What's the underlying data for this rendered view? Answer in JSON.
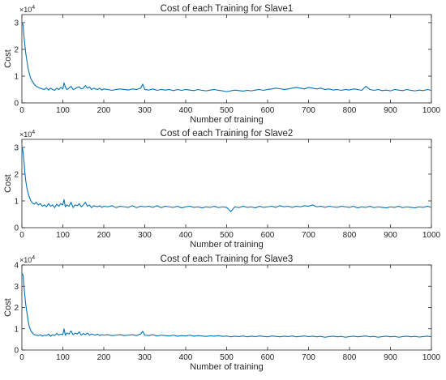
{
  "chart_data": [
    {
      "type": "line",
      "title": "Cost of each Training for Slave1",
      "xlabel": "Number of training",
      "ylabel": "Cost",
      "y_exponent_label": "×10",
      "y_exponent_power": "4",
      "xlim": [
        0,
        1000
      ],
      "ylim": [
        0,
        3.3
      ],
      "xticks": [
        "0",
        "100",
        "200",
        "300",
        "400",
        "500",
        "600",
        "700",
        "800",
        "900",
        "1000"
      ],
      "yticks": [
        "0",
        "1",
        "2",
        "3"
      ],
      "grid": false,
      "series": [
        {
          "color": "#0072BD",
          "x": [
            1,
            3,
            5,
            7,
            9,
            12,
            15,
            18,
            22,
            26,
            30,
            35,
            40,
            45,
            50,
            55,
            60,
            65,
            70,
            75,
            80,
            85,
            90,
            95,
            100,
            103,
            106,
            110,
            115,
            120,
            125,
            130,
            135,
            140,
            145,
            150,
            155,
            160,
            165,
            170,
            175,
            180,
            185,
            190,
            195,
            200,
            210,
            220,
            230,
            240,
            250,
            260,
            270,
            280,
            290,
            295,
            300,
            310,
            320,
            330,
            340,
            350,
            360,
            370,
            380,
            390,
            400,
            410,
            420,
            430,
            440,
            450,
            460,
            470,
            480,
            490,
            500,
            510,
            520,
            530,
            540,
            550,
            560,
            570,
            580,
            590,
            600,
            610,
            620,
            630,
            640,
            650,
            660,
            670,
            680,
            690,
            700,
            710,
            720,
            730,
            740,
            750,
            760,
            770,
            780,
            790,
            800,
            810,
            820,
            830,
            840,
            850,
            860,
            870,
            880,
            890,
            900,
            910,
            920,
            930,
            940,
            950,
            960,
            970,
            980,
            990,
            1000
          ],
          "y": [
            3.0,
            2.9,
            2.5,
            2.2,
            1.9,
            1.6,
            1.3,
            1.1,
            0.9,
            0.8,
            0.7,
            0.62,
            0.58,
            0.55,
            0.52,
            0.5,
            0.56,
            0.48,
            0.55,
            0.5,
            0.47,
            0.55,
            0.5,
            0.58,
            0.52,
            0.75,
            0.6,
            0.5,
            0.55,
            0.62,
            0.5,
            0.53,
            0.58,
            0.6,
            0.52,
            0.55,
            0.65,
            0.55,
            0.6,
            0.5,
            0.55,
            0.52,
            0.5,
            0.55,
            0.48,
            0.52,
            0.5,
            0.47,
            0.5,
            0.52,
            0.5,
            0.48,
            0.52,
            0.5,
            0.55,
            0.7,
            0.5,
            0.48,
            0.52,
            0.47,
            0.5,
            0.48,
            0.5,
            0.46,
            0.5,
            0.47,
            0.5,
            0.48,
            0.46,
            0.5,
            0.47,
            0.45,
            0.48,
            0.5,
            0.47,
            0.45,
            0.42,
            0.45,
            0.48,
            0.46,
            0.44,
            0.47,
            0.45,
            0.48,
            0.5,
            0.47,
            0.5,
            0.52,
            0.55,
            0.53,
            0.5,
            0.52,
            0.55,
            0.58,
            0.55,
            0.52,
            0.58,
            0.55,
            0.52,
            0.55,
            0.5,
            0.52,
            0.48,
            0.5,
            0.47,
            0.5,
            0.48,
            0.52,
            0.5,
            0.47,
            0.62,
            0.5,
            0.47,
            0.5,
            0.46,
            0.48,
            0.45,
            0.5,
            0.48,
            0.46,
            0.5,
            0.47,
            0.45,
            0.48,
            0.46,
            0.5,
            0.47
          ]
        }
      ]
    },
    {
      "type": "line",
      "title": "Cost of each Training for Slave2",
      "xlabel": "Number of training",
      "ylabel": "Cost",
      "y_exponent_label": "×10",
      "y_exponent_power": "4",
      "xlim": [
        0,
        1000
      ],
      "ylim": [
        0,
        3.3
      ],
      "xticks": [
        "0",
        "100",
        "200",
        "300",
        "400",
        "500",
        "600",
        "700",
        "800",
        "900",
        "1000"
      ],
      "yticks": [
        "0",
        "1",
        "2",
        "3"
      ],
      "grid": false,
      "series": [
        {
          "color": "#0072BD",
          "x": [
            1,
            3,
            5,
            7,
            9,
            12,
            15,
            18,
            22,
            26,
            30,
            35,
            40,
            45,
            50,
            55,
            60,
            65,
            70,
            75,
            80,
            85,
            90,
            95,
            100,
            103,
            106,
            110,
            115,
            120,
            125,
            130,
            135,
            140,
            145,
            150,
            155,
            160,
            165,
            170,
            175,
            180,
            185,
            190,
            195,
            200,
            210,
            220,
            230,
            240,
            250,
            260,
            270,
            280,
            290,
            300,
            310,
            320,
            330,
            340,
            350,
            360,
            370,
            380,
            390,
            400,
            410,
            420,
            430,
            440,
            450,
            460,
            470,
            480,
            490,
            500,
            510,
            520,
            530,
            540,
            550,
            560,
            570,
            580,
            590,
            600,
            610,
            620,
            630,
            640,
            650,
            660,
            670,
            680,
            690,
            700,
            710,
            720,
            730,
            740,
            750,
            760,
            770,
            780,
            790,
            800,
            810,
            820,
            830,
            840,
            850,
            860,
            870,
            880,
            890,
            900,
            910,
            920,
            930,
            940,
            950,
            960,
            970,
            980,
            990,
            1000
          ],
          "y": [
            3.0,
            2.8,
            2.5,
            2.1,
            1.8,
            1.5,
            1.3,
            1.15,
            1.0,
            0.92,
            0.88,
            0.95,
            0.85,
            0.9,
            0.8,
            0.85,
            0.78,
            0.9,
            0.8,
            0.85,
            0.75,
            0.88,
            0.8,
            0.9,
            0.85,
            1.05,
            0.78,
            0.85,
            0.8,
            0.95,
            0.75,
            0.85,
            0.82,
            0.9,
            0.78,
            0.85,
            0.95,
            0.8,
            0.85,
            0.75,
            0.82,
            0.8,
            0.78,
            0.82,
            0.76,
            0.8,
            0.78,
            0.82,
            0.75,
            0.8,
            0.78,
            0.76,
            0.82,
            0.75,
            0.8,
            0.78,
            0.8,
            0.76,
            0.82,
            0.75,
            0.8,
            0.78,
            0.76,
            0.8,
            0.74,
            0.78,
            0.8,
            0.76,
            0.78,
            0.74,
            0.78,
            0.76,
            0.8,
            0.75,
            0.78,
            0.76,
            0.6,
            0.78,
            0.75,
            0.8,
            0.76,
            0.78,
            0.74,
            0.8,
            0.76,
            0.78,
            0.8,
            0.76,
            0.82,
            0.78,
            0.8,
            0.76,
            0.8,
            0.78,
            0.82,
            0.8,
            0.85,
            0.78,
            0.8,
            0.76,
            0.8,
            0.78,
            0.76,
            0.8,
            0.78,
            0.76,
            0.8,
            0.74,
            0.78,
            0.76,
            0.8,
            0.75,
            0.78,
            0.76,
            0.74,
            0.78,
            0.76,
            0.8,
            0.75,
            0.78,
            0.76,
            0.74,
            0.78,
            0.76,
            0.8,
            0.76
          ]
        }
      ]
    },
    {
      "type": "line",
      "title": "Cost of each Training for Slave3",
      "xlabel": "Number of training",
      "ylabel": "Cost",
      "y_exponent_label": "×10",
      "y_exponent_power": "4",
      "xlim": [
        0,
        1000
      ],
      "ylim": [
        0,
        4
      ],
      "xticks": [
        "0",
        "100",
        "200",
        "300",
        "400",
        "500",
        "600",
        "700",
        "800",
        "900",
        "1000"
      ],
      "yticks": [
        "0",
        "1",
        "2",
        "3",
        "4"
      ],
      "grid": false,
      "series": [
        {
          "color": "#0072BD",
          "x": [
            1,
            3,
            5,
            7,
            9,
            12,
            15,
            18,
            22,
            26,
            30,
            35,
            40,
            45,
            50,
            55,
            60,
            65,
            70,
            75,
            80,
            85,
            90,
            95,
            100,
            103,
            106,
            110,
            115,
            120,
            125,
            130,
            135,
            140,
            145,
            150,
            155,
            160,
            165,
            170,
            175,
            180,
            185,
            190,
            195,
            200,
            210,
            220,
            230,
            240,
            250,
            260,
            270,
            280,
            290,
            295,
            300,
            310,
            320,
            330,
            340,
            350,
            360,
            370,
            380,
            390,
            400,
            410,
            420,
            430,
            440,
            450,
            460,
            470,
            480,
            490,
            500,
            510,
            520,
            530,
            540,
            550,
            560,
            570,
            580,
            590,
            600,
            610,
            620,
            630,
            640,
            650,
            660,
            670,
            680,
            690,
            700,
            710,
            720,
            730,
            740,
            750,
            760,
            770,
            780,
            790,
            800,
            810,
            820,
            830,
            840,
            850,
            860,
            870,
            880,
            890,
            900,
            910,
            920,
            930,
            940,
            950,
            960,
            970,
            980,
            990,
            1000
          ],
          "y": [
            3.6,
            3.5,
            3.0,
            2.6,
            2.2,
            1.8,
            1.4,
            1.1,
            0.9,
            0.8,
            0.72,
            0.7,
            0.68,
            0.72,
            0.65,
            0.7,
            0.68,
            0.75,
            0.65,
            0.72,
            0.68,
            0.78,
            0.7,
            0.75,
            0.72,
            1.0,
            0.7,
            0.8,
            0.75,
            0.9,
            0.72,
            0.8,
            0.75,
            0.85,
            0.7,
            0.78,
            0.72,
            0.8,
            0.7,
            0.75,
            0.72,
            0.7,
            0.75,
            0.68,
            0.72,
            0.7,
            0.72,
            0.68,
            0.7,
            0.72,
            0.68,
            0.7,
            0.72,
            0.68,
            0.75,
            0.88,
            0.7,
            0.68,
            0.72,
            0.66,
            0.7,
            0.68,
            0.66,
            0.7,
            0.65,
            0.68,
            0.66,
            0.7,
            0.65,
            0.68,
            0.66,
            0.64,
            0.67,
            0.65,
            0.68,
            0.64,
            0.66,
            0.62,
            0.65,
            0.63,
            0.66,
            0.62,
            0.65,
            0.63,
            0.66,
            0.64,
            0.62,
            0.66,
            0.64,
            0.62,
            0.65,
            0.63,
            0.66,
            0.62,
            0.64,
            0.66,
            0.63,
            0.65,
            0.62,
            0.64,
            0.6,
            0.63,
            0.65,
            0.62,
            0.64,
            0.6,
            0.63,
            0.65,
            0.62,
            0.64,
            0.66,
            0.62,
            0.64,
            0.6,
            0.63,
            0.65,
            0.62,
            0.64,
            0.6,
            0.63,
            0.65,
            0.62,
            0.64,
            0.61,
            0.63,
            0.65,
            0.62
          ]
        }
      ]
    }
  ]
}
